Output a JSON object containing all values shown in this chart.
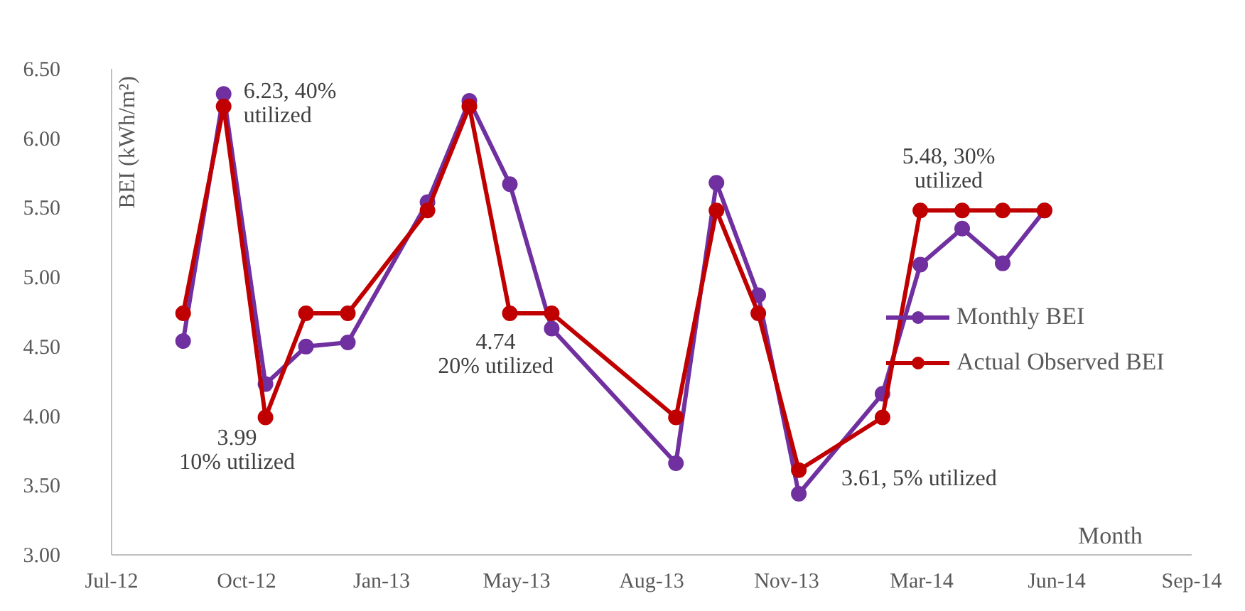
{
  "chart_data": {
    "type": "line",
    "xlabel": "Month",
    "ylabel": "BEI (kWh/m²)",
    "x": [
      "2012-09-01",
      "2012-10-01",
      "2012-11-01",
      "2012-12-01",
      "2013-01-01",
      "2013-03-01",
      "2013-04-01",
      "2013-05-01",
      "2013-06-01",
      "2013-09-01",
      "2013-10-01",
      "2013-11-01",
      "2013-12-01",
      "2014-02-01",
      "2014-03-01",
      "2014-04-01",
      "2014-05-01",
      "2014-06-01"
    ],
    "series": [
      {
        "name": "Monthly BEI",
        "color": "#7030a0",
        "values": [
          4.54,
          6.32,
          4.23,
          4.5,
          4.53,
          5.54,
          6.27,
          5.67,
          4.63,
          3.66,
          5.68,
          4.87,
          3.44,
          4.16,
          5.09,
          5.35,
          5.1,
          5.48
        ]
      },
      {
        "name": "Actual Observed BEI",
        "color": "#c00000",
        "values": [
          4.74,
          6.23,
          3.99,
          4.74,
          4.74,
          5.48,
          6.23,
          4.74,
          4.74,
          3.99,
          5.48,
          4.74,
          3.61,
          3.99,
          5.48,
          5.48,
          5.48,
          5.48
        ]
      }
    ],
    "ylim": [
      3.0,
      6.5
    ],
    "yticks": [
      {
        "value": 3.0,
        "label": "3.00"
      },
      {
        "value": 3.5,
        "label": "3.50"
      },
      {
        "value": 4.0,
        "label": "4.00"
      },
      {
        "value": 4.5,
        "label": "4.50"
      },
      {
        "value": 5.0,
        "label": "5.00"
      },
      {
        "value": 5.5,
        "label": "5.50"
      },
      {
        "value": 6.0,
        "label": "6.00"
      },
      {
        "value": 6.5,
        "label": "6.50"
      }
    ],
    "xlim": [
      "2012-07-10",
      "2014-09-18"
    ],
    "xticks": [
      {
        "value": "2012-07-10",
        "label": "Jul-12"
      },
      {
        "value": "2012-10-18",
        "label": "Oct-12"
      },
      {
        "value": "2013-01-26",
        "label": "Jan-13"
      },
      {
        "value": "2013-05-06",
        "label": "May-13"
      },
      {
        "value": "2013-08-14",
        "label": "Aug-13"
      },
      {
        "value": "2013-11-22",
        "label": "Nov-13"
      },
      {
        "value": "2014-03-02",
        "label": "Mar-14"
      },
      {
        "value": "2014-06-10",
        "label": "Jun-14"
      },
      {
        "value": "2014-09-18",
        "label": "Sep-14"
      }
    ],
    "annotations": [
      {
        "text": "6.23, 40%\nutilized",
        "x": "2012-10-01",
        "y": 6.23
      },
      {
        "text": "3.99\n10% utilized",
        "x": "2012-11-01",
        "y": 3.99
      },
      {
        "text": "4.74\n20% utilized",
        "x": "2013-05-01",
        "y": 4.74
      },
      {
        "text": "3.61, 5% utilized",
        "x": "2013-12-01",
        "y": 3.61
      },
      {
        "text": "5.48, 30%\nutilized",
        "x": "2014-03-01",
        "y": 5.48
      }
    ],
    "marker": "circle",
    "line_style": "solid",
    "grid": false,
    "legend": "right"
  }
}
